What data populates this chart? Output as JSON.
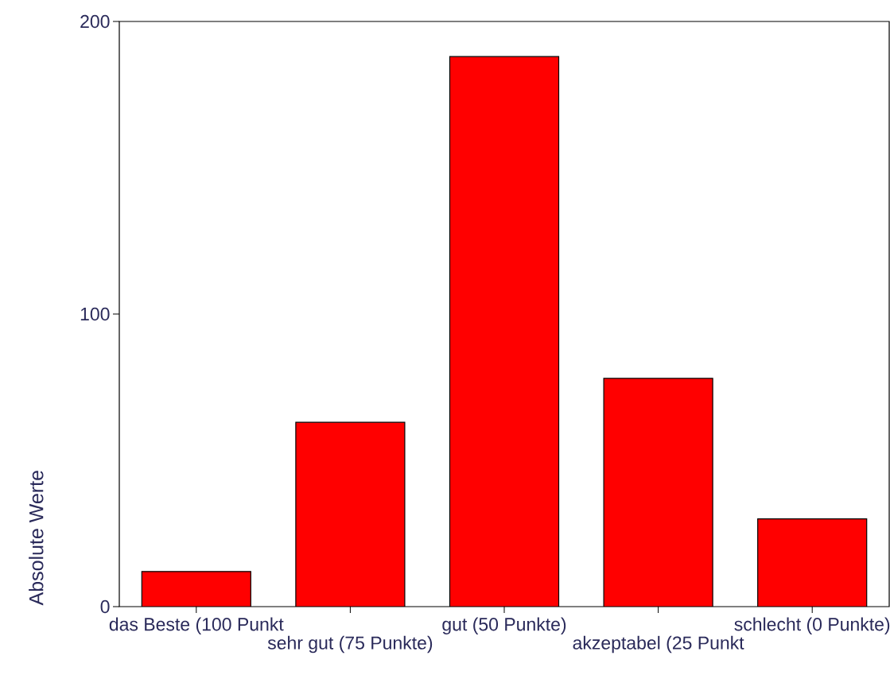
{
  "chart_data": {
    "type": "bar",
    "ylabel": "Absolute Werte",
    "categories": [
      "das Beste (100 Punkt",
      "sehr gut (75 Punkte)",
      "gut (50 Punkte)",
      "akzeptabel (25 Punkt",
      "schlecht (0 Punkte)"
    ],
    "values": [
      12,
      63,
      188,
      78,
      30
    ],
    "color": "#ff0000",
    "ylim": [
      0,
      200
    ],
    "yticks": [
      0,
      100,
      200
    ],
    "grid": false
  }
}
